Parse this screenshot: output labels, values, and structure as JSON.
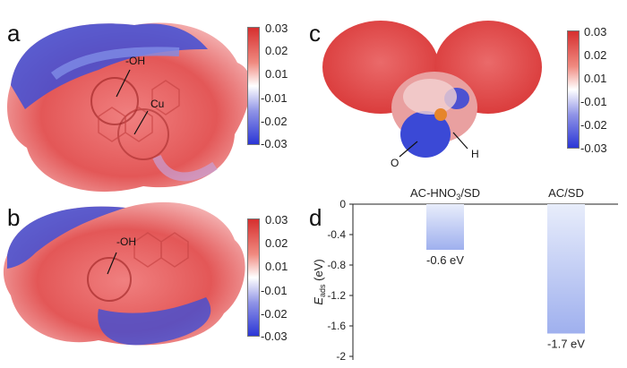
{
  "panels": {
    "a": {
      "letter": "a",
      "callouts": [
        "-OH",
        "Cu"
      ]
    },
    "b": {
      "letter": "b",
      "callouts": [
        "-OH"
      ]
    },
    "c": {
      "letter": "c",
      "callouts": [
        "O",
        "H"
      ]
    },
    "d": {
      "letter": "d"
    }
  },
  "colorbar": {
    "ticks": [
      "0.03",
      "0.02",
      "0.01",
      "-0.01",
      "-0.02",
      "-0.03"
    ],
    "colors": {
      "positive": "#d62f2f",
      "neutral": "#ffffff",
      "negative": "#2b36d6"
    }
  },
  "chart_data": {
    "type": "bar",
    "categories": [
      "AC-HNO3/SD",
      "AC/SD"
    ],
    "values": [
      -0.6,
      -1.7
    ],
    "data_labels": [
      "-0.6 eV",
      "-1.7 eV"
    ],
    "ylabel": "E_ads (eV)",
    "ylim": [
      -2,
      0
    ],
    "yticks": [
      "0",
      "-0.4",
      "-0.8",
      "-1.2",
      "-1.6",
      "-2"
    ],
    "bar_color": "#a9b8ef"
  }
}
